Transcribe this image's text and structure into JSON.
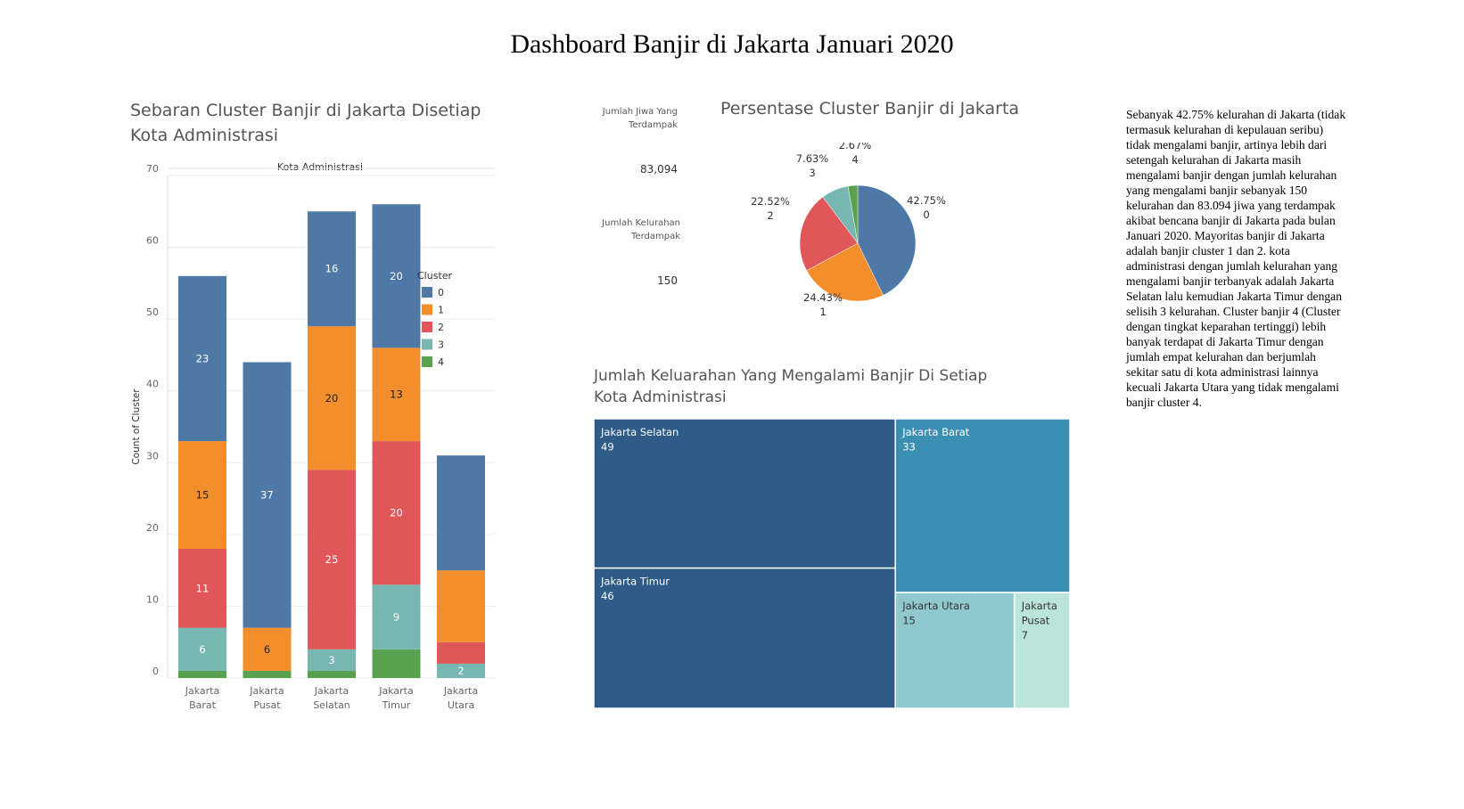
{
  "dashboard_title": "Dashboard Banjir di Jakarta Januari 2020",
  "narrative": "Sebanyak 42.75% kelurahan di Jakarta (tidak termasuk kelurahan di kepulauan seribu) tidak mengalami banjir, artinya lebih dari setengah kelurahan di Jakarta masih mengalami banjir dengan jumlah kelurahan yang mengalami banjir sebanyak 150 kelurahan dan 83.094 jiwa yang terdampak akibat bencana banjir di Jakarta pada bulan Januari 2020. Mayoritas banjir di Jakarta adalah banjir cluster 1 dan 2. kota administrasi dengan jumlah kelurahan yang mengalami banjir terbanyak adalah Jakarta Selatan lalu kemudian Jakarta Timur dengan selisih 3 kelurahan. Cluster banjir 4 (Cluster dengan tingkat keparahan tertinggi) lebih banyak terdapat di Jakarta Timur dengan jumlah empat kelurahan dan berjumlah sekitar satu di kota administrasi lainnya kecuali Jakarta Utara yang tidak mengalami banjir cluster 4.",
  "kpis": {
    "jiwa_label": "Jumlah Jiwa Yang Terdampak",
    "jiwa_value": "83,094",
    "kelurahan_label": "Jumlah Kelurahan Terdampak",
    "kelurahan_value": "150"
  },
  "colors": {
    "cluster": [
      "#4e79a7",
      "#f28e2b",
      "#e15759",
      "#76b7b2",
      "#59a14f"
    ],
    "treemap": {
      "Jakarta Selatan": "#2e5b87",
      "Jakarta Timur": "#2e5b87",
      "Jakarta Barat": "#3a8fb3",
      "Jakarta Utara": "#8fc9cf",
      "Jakarta Pusat": "#bce5da"
    }
  },
  "chart_data": [
    {
      "type": "bar",
      "stacked": true,
      "title": "Sebaran Cluster Banjir di Jakarta Disetiap Kota Administrasi",
      "header": "Kota Administrasi",
      "categories": [
        "Jakarta Barat",
        "Jakarta Pusat",
        "Jakarta Selatan",
        "Jakarta Timur",
        "Jakarta Utara"
      ],
      "ylabel": "Count of Cluster",
      "ylim": [
        0,
        70
      ],
      "yticks": [
        0,
        10,
        20,
        30,
        40,
        50,
        60,
        70
      ],
      "legend_title": "Cluster",
      "series": [
        {
          "name": "0",
          "values": [
            23,
            37,
            16,
            20,
            16
          ]
        },
        {
          "name": "1",
          "values": [
            15,
            6,
            20,
            13,
            10
          ]
        },
        {
          "name": "2",
          "values": [
            11,
            0,
            25,
            20,
            3
          ]
        },
        {
          "name": "3",
          "values": [
            6,
            0,
            3,
            9,
            2
          ]
        },
        {
          "name": "4",
          "values": [
            1,
            1,
            1,
            4,
            0
          ]
        }
      ],
      "hidden_labels": [
        [
          0,
          4
        ],
        [
          1,
          4
        ],
        [
          2,
          4
        ],
        [
          4,
          3
        ]
      ]
    },
    {
      "type": "pie",
      "title": "Persentase Cluster Banjir di Jakarta",
      "slices": [
        {
          "cluster": "0",
          "percent": 42.75,
          "label": "42.75%"
        },
        {
          "cluster": "1",
          "percent": 24.43,
          "label": "24.43%"
        },
        {
          "cluster": "2",
          "percent": 22.52,
          "label": "22.52%"
        },
        {
          "cluster": "3",
          "percent": 7.63,
          "label": "7.63%"
        },
        {
          "cluster": "4",
          "percent": 2.67,
          "label": "2.67%"
        }
      ]
    },
    {
      "type": "treemap",
      "title": "Jumlah Keluarahan Yang Mengalami Banjir  Di Setiap Kota Administrasi",
      "items": [
        {
          "name": "Jakarta Selatan",
          "value": 49,
          "lines": [
            "Jakarta Selatan"
          ]
        },
        {
          "name": "Jakarta Timur",
          "value": 46,
          "lines": [
            "Jakarta Timur"
          ]
        },
        {
          "name": "Jakarta Barat",
          "value": 33,
          "lines": [
            "Jakarta Barat"
          ]
        },
        {
          "name": "Jakarta Utara",
          "value": 15,
          "lines": [
            "Jakarta Utara"
          ]
        },
        {
          "name": "Jakarta Pusat",
          "value": 7,
          "lines": [
            "Jakarta",
            "Pusat"
          ]
        }
      ]
    }
  ]
}
